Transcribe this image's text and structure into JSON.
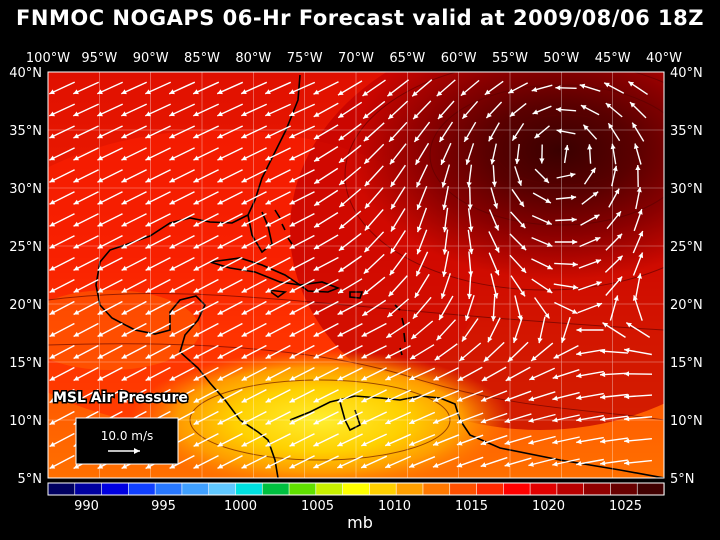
{
  "title": "FNMOC NOGAPS 06-Hr Forecast valid at 2009/08/06 18Z",
  "field_label": "MSL Air Pressure",
  "wind_scale_label": "10.0 m/s",
  "units": "mb",
  "map": {
    "lon_range": [
      -100,
      -40
    ],
    "lat_range": [
      5,
      40
    ],
    "lon_ticks": [
      {
        "lon": -100,
        "label": "100°W"
      },
      {
        "lon": -95,
        "label": "95°W"
      },
      {
        "lon": -90,
        "label": "90°W"
      },
      {
        "lon": -85,
        "label": "85°W"
      },
      {
        "lon": -80,
        "label": "80°W"
      },
      {
        "lon": -75,
        "label": "75°W"
      },
      {
        "lon": -70,
        "label": "70°W"
      },
      {
        "lon": -65,
        "label": "65°W"
      },
      {
        "lon": -60,
        "label": "60°W"
      },
      {
        "lon": -55,
        "label": "55°W"
      },
      {
        "lon": -50,
        "label": "50°W"
      },
      {
        "lon": -45,
        "label": "45°W"
      },
      {
        "lon": -40,
        "label": "40°W"
      }
    ],
    "lat_ticks": [
      {
        "lat": 40,
        "label": "40°N"
      },
      {
        "lat": 35,
        "label": "35°N"
      },
      {
        "lat": 30,
        "label": "30°N"
      },
      {
        "lat": 25,
        "label": "25°N"
      },
      {
        "lat": 20,
        "label": "20°N"
      },
      {
        "lat": 15,
        "label": "15°N"
      },
      {
        "lat": 10,
        "label": "10°N"
      },
      {
        "lat": 5,
        "label": "5°N"
      }
    ],
    "high_center": {
      "lon": -50,
      "lat": 33,
      "pressure": 1026
    },
    "low_pressure_area": {
      "lon": -75,
      "lat": 10,
      "pressure": 1009
    }
  },
  "colorbar": {
    "colors": [
      "#000060",
      "#0000a0",
      "#0000e0",
      "#1040ff",
      "#2878ff",
      "#40a0ff",
      "#60c8ff",
      "#00e0e0",
      "#00c040",
      "#60e000",
      "#c8f000",
      "#ffff00",
      "#ffd000",
      "#ffa000",
      "#ff7800",
      "#ff5000",
      "#ff2800",
      "#ff0000",
      "#e00000",
      "#b80000",
      "#900000",
      "#680000",
      "#400000"
    ],
    "labels": [
      {
        "value": 990,
        "label": "990"
      },
      {
        "value": 995,
        "label": "995"
      },
      {
        "value": 1000,
        "label": "1000"
      },
      {
        "value": 1005,
        "label": "1005"
      },
      {
        "value": 1010,
        "label": "1010"
      },
      {
        "value": 1015,
        "label": "1015"
      },
      {
        "value": 1020,
        "label": "1020"
      },
      {
        "value": 1025,
        "label": "1025"
      }
    ],
    "min": 987.5,
    "max": 1027.5
  },
  "palette": {
    "land_line": "#000000",
    "grid_line": "#ffffff",
    "arrow": "#ffffff"
  }
}
